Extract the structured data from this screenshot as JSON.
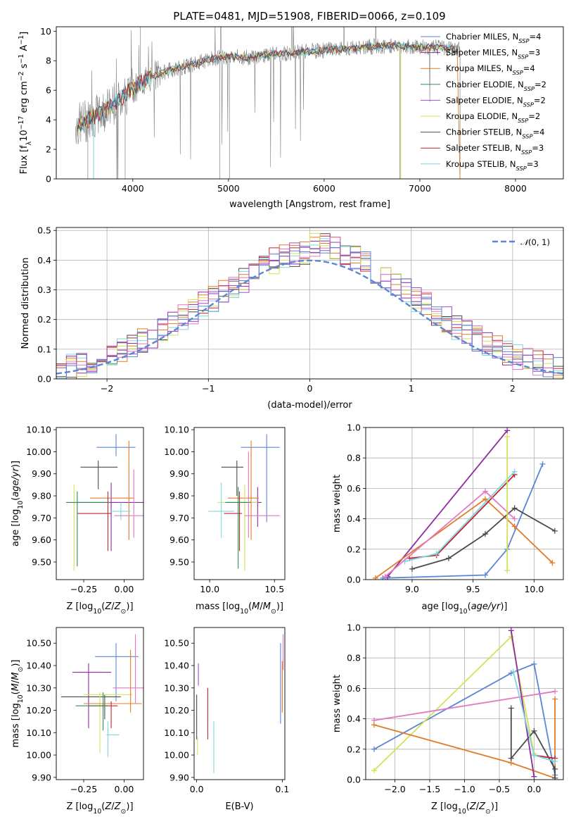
{
  "figure_title": "PLATE=0481, MJD=51908, FIBERID=0066, z=0.109",
  "colors": {
    "Chabrier MILES": "#5b86d6",
    "Salpeter MILES": "#8e2c9e",
    "Kroupa MILES": "#e07b26",
    "Chabrier ELODIE": "#2e8b57",
    "Salpeter ELODIE": "#a04ec8",
    "Kroupa ELODIE": "#d4e157",
    "Chabrier STELIB": "#4a4a4a",
    "Salpeter STELIB": "#c0262d",
    "Kroupa STELIB": "#7fd6e0",
    "pink": "#e377c2",
    "data": "#808080"
  },
  "chart_data": [
    {
      "id": "spectrum",
      "type": "line",
      "title": "PLATE=0481, MJD=51908, FIBERID=0066, z=0.109",
      "xlabel": "wavelength [Angstrom, rest frame]",
      "ylabel": "Flux [f_λ 10^-17 erg cm^-2 s^-1 A^-1]",
      "xlim": [
        3200,
        8500
      ],
      "ylim": [
        0,
        10.3
      ],
      "xticks": [
        4000,
        5000,
        6000,
        7000,
        8000
      ],
      "yticks": [
        0,
        2,
        4,
        6,
        8,
        10
      ],
      "legend_position": "upper right",
      "legend": [
        {
          "label": "Chabrier MILES, N_SSP=4",
          "color": "#5b86d6"
        },
        {
          "label": "Salpeter MILES, N_SSP=3",
          "color": "#8e2c9e"
        },
        {
          "label": "Kroupa MILES, N_SSP=4",
          "color": "#e07b26"
        },
        {
          "label": "Chabrier ELODIE, N_SSP=2",
          "color": "#2e8b57"
        },
        {
          "label": "Salpeter ELODIE, N_SSP=2",
          "color": "#a04ec8"
        },
        {
          "label": "Kroupa ELODIE, N_SSP=2",
          "color": "#d4e157"
        },
        {
          "label": "Chabrier STELIB, N_SSP=4",
          "color": "#4a4a4a"
        },
        {
          "label": "Salpeter STELIB, N_SSP=3",
          "color": "#c0262d"
        },
        {
          "label": "Kroupa STELIB, N_SSP=3",
          "color": "#7fd6e0"
        }
      ],
      "continuum": {
        "x": [
          3400,
          3600,
          3800,
          4000,
          4200,
          4400,
          4600,
          4800,
          5000,
          5200,
          5400,
          5600,
          5800,
          6000,
          6200,
          6400,
          6600,
          6800,
          7000,
          7200,
          7400
        ],
        "y": [
          3.6,
          4.2,
          5.0,
          6.2,
          6.9,
          7.4,
          7.7,
          8.1,
          8.3,
          8.2,
          8.4,
          8.5,
          8.6,
          8.7,
          8.8,
          8.9,
          9.0,
          9.0,
          8.9,
          8.9,
          8.8
        ]
      }
    },
    {
      "id": "residuals",
      "type": "step",
      "xlabel": "(data-model)/error",
      "ylabel": "Normed distribution",
      "xlim": [
        -2.5,
        2.5
      ],
      "ylim": [
        0,
        0.51
      ],
      "xticks": [
        -2,
        -1,
        0,
        1,
        2
      ],
      "yticks": [
        0.0,
        0.1,
        0.2,
        0.3,
        0.4,
        0.5
      ],
      "grid": true,
      "legend": [
        {
          "label": "N(0,1)",
          "color": "#5b86d6",
          "style": "dashed"
        }
      ],
      "bin_width": 0.1
    },
    {
      "id": "Z-age",
      "type": "errorbar",
      "xlabel": "Z [log10(Z/Z⊙)]",
      "ylabel": "age  [log10(age/yr)]",
      "xlim": [
        -0.42,
        0.12
      ],
      "ylim": [
        9.42,
        10.11
      ],
      "xticks": [
        -0.25,
        0.0
      ],
      "xtick_labels": [
        "−0.25",
        "0.00"
      ],
      "yticks": [
        9.5,
        9.6,
        9.7,
        9.8,
        9.9,
        10.0,
        10.1
      ],
      "points": [
        {
          "x": -0.05,
          "xerr": [
            0.12,
            0.12
          ],
          "y": 10.02,
          "yerr": [
            0.04,
            0.06
          ],
          "color": "#5b86d6"
        },
        {
          "x": -0.16,
          "xerr": [
            0.11,
            0.12
          ],
          "y": 9.93,
          "yerr": [
            0.1,
            0.03
          ],
          "color": "#4a4a4a"
        },
        {
          "x": -0.08,
          "xerr": [
            0.21,
            0.2
          ],
          "y": 9.77,
          "yerr": [
            0.22,
            0.09
          ],
          "color": "#8e2c9e"
        },
        {
          "x": 0.03,
          "xerr": [
            0.24,
            0.03
          ],
          "y": 9.79,
          "yerr": [
            0.19,
            0.26
          ],
          "color": "#e07b26"
        },
        {
          "x": -0.31,
          "xerr": [
            0.02,
            0.1
          ],
          "y": 9.77,
          "yerr": [
            0.31,
            0.08
          ],
          "color": "#d4e157"
        },
        {
          "x": -0.1,
          "xerr": [
            0.19,
            0.02
          ],
          "y": 9.72,
          "yerr": [
            0.17,
            0.1
          ],
          "color": "#c0262d"
        },
        {
          "x": -0.29,
          "xerr": [
            0.07,
            0.2
          ],
          "y": 9.77,
          "yerr": [
            0.29,
            0.05
          ],
          "color": "#2e8b57"
        },
        {
          "x": -0.02,
          "xerr": [
            0.06,
            0.06
          ],
          "y": 9.73,
          "yerr": [
            0.04,
            0.04
          ],
          "color": "#7fd6e0"
        },
        {
          "x": 0.06,
          "xerr": [
            0.12,
            0.06
          ],
          "y": 9.71,
          "yerr": [
            0.1,
            0.21
          ],
          "color": "#e377c2"
        }
      ]
    },
    {
      "id": "mass-age",
      "type": "errorbar",
      "xlabel": "mass [log10(M/M⊙)]",
      "ylabel": "",
      "xlim": [
        9.88,
        10.58
      ],
      "ylim": [
        9.42,
        10.11
      ],
      "xticks": [
        10.0,
        10.5
      ],
      "xtick_labels": [
        "10.0",
        "10.5"
      ],
      "yticks": [
        9.5,
        9.6,
        9.7,
        9.8,
        9.9,
        10.0,
        10.1
      ],
      "points": [
        {
          "x": 10.44,
          "xerr": [
            0.2,
            0.1
          ],
          "y": 10.02,
          "yerr": [
            0.34,
            0.06
          ],
          "color": "#5b86d6"
        },
        {
          "x": 10.21,
          "xerr": [
            0.12,
            0.05
          ],
          "y": 9.93,
          "yerr": [
            0.13,
            0.03
          ],
          "color": "#4a4a4a"
        },
        {
          "x": 10.37,
          "xerr": [
            0.24,
            0.03
          ],
          "y": 9.77,
          "yerr": [
            0.11,
            0.07
          ],
          "color": "#8e2c9e"
        },
        {
          "x": 10.32,
          "xerr": [
            0.18,
            0.06
          ],
          "y": 9.79,
          "yerr": [
            0.19,
            0.26
          ],
          "color": "#e07b26"
        },
        {
          "x": 10.27,
          "xerr": [
            0.21,
            0.1
          ],
          "y": 9.77,
          "yerr": [
            0.31,
            0.08
          ],
          "color": "#d4e157"
        },
        {
          "x": 10.23,
          "xerr": [
            0.12,
            0.02
          ],
          "y": 9.72,
          "yerr": [
            0.17,
            0.1
          ],
          "color": "#c0262d"
        },
        {
          "x": 10.22,
          "xerr": [
            0.1,
            0.1
          ],
          "y": 9.77,
          "yerr": [
            0.3,
            0.07
          ],
          "color": "#2e8b57"
        },
        {
          "x": 10.09,
          "xerr": [
            0.1,
            0.1
          ],
          "y": 9.73,
          "yerr": [
            0.12,
            0.13
          ],
          "color": "#7fd6e0"
        },
        {
          "x": 10.3,
          "xerr": [
            0.03,
            0.24
          ],
          "y": 9.71,
          "yerr": [
            0.1,
            0.29
          ],
          "color": "#e377c2"
        }
      ]
    },
    {
      "id": "age-weight",
      "type": "line",
      "xlabel": "age  [log10(age/yr)]",
      "ylabel": "mass weight",
      "xlim": [
        8.62,
        10.24
      ],
      "ylim": [
        0,
        1.0
      ],
      "xticks": [
        9.0,
        9.5,
        10.0
      ],
      "xtick_labels": [
        "9.0",
        "9.5",
        "10.0"
      ],
      "yticks": [
        0.0,
        0.2,
        0.4,
        0.6,
        0.8,
        1.0
      ],
      "grid": true,
      "series": [
        {
          "color": "#5b86d6",
          "x": [
            8.76,
            9.6,
            9.78,
            10.07
          ],
          "y": [
            0.01,
            0.03,
            0.2,
            0.76
          ]
        },
        {
          "color": "#8e2c9e",
          "x": [
            8.8,
            9.78
          ],
          "y": [
            0.02,
            0.98
          ]
        },
        {
          "color": "#e07b26",
          "x": [
            8.7,
            9.6,
            9.84,
            10.15
          ],
          "y": [
            0.01,
            0.53,
            0.35,
            0.11
          ]
        },
        {
          "color": "#4a4a4a",
          "x": [
            9.0,
            9.3,
            9.6,
            9.84,
            10.17
          ],
          "y": [
            0.07,
            0.14,
            0.3,
            0.47,
            0.32
          ]
        },
        {
          "color": "#c0262d",
          "x": [
            8.98,
            9.2,
            9.84
          ],
          "y": [
            0.14,
            0.16,
            0.69
          ]
        },
        {
          "color": "#7fd6e0",
          "x": [
            8.94,
            9.2,
            9.84
          ],
          "y": [
            0.12,
            0.17,
            0.71
          ]
        },
        {
          "color": "#e377c2",
          "x": [
            8.78,
            9.6,
            9.84
          ],
          "y": [
            0.02,
            0.58,
            0.4
          ]
        },
        {
          "color": "#d4e157",
          "x": [
            9.78,
            9.78
          ],
          "y": [
            0.06,
            0.94
          ]
        }
      ]
    },
    {
      "id": "Z-mass",
      "type": "errorbar",
      "xlabel": "Z [log10(Z/Z⊙)]",
      "ylabel": "mass [log10(M/M⊙)]",
      "xlim": [
        -0.42,
        0.12
      ],
      "ylim": [
        9.89,
        10.57
      ],
      "xticks": [
        -0.25,
        0.0
      ],
      "xtick_labels": [
        "−0.25",
        "0.00"
      ],
      "yticks": [
        9.9,
        10.0,
        10.1,
        10.2,
        10.3,
        10.4,
        10.5
      ],
      "points": [
        {
          "x": -0.05,
          "xerr": [
            0.13,
            0.14
          ],
          "y": 10.44,
          "yerr": [
            0.2,
            0.06
          ],
          "color": "#5b86d6"
        },
        {
          "x": -0.22,
          "xerr": [
            0.1,
            0.14
          ],
          "y": 10.37,
          "yerr": [
            0.25,
            0.04
          ],
          "color": "#8e2c9e"
        },
        {
          "x": -0.12,
          "xerr": [
            0.27,
            0.1
          ],
          "y": 10.26,
          "yerr": [
            0.1,
            0.01
          ],
          "color": "#4a4a4a"
        },
        {
          "x": -0.15,
          "xerr": [
            0.1,
            0.2
          ],
          "y": 10.27,
          "yerr": [
            0.26,
            0.01
          ],
          "color": "#d4e157"
        },
        {
          "x": 0.04,
          "xerr": [
            0.29,
            0.07
          ],
          "y": 10.23,
          "yerr": [
            0.04,
            0.24
          ],
          "color": "#e07b26"
        },
        {
          "x": -0.08,
          "xerr": [
            0.14,
            0.04
          ],
          "y": 10.22,
          "yerr": [
            0.1,
            0.02
          ],
          "color": "#c0262d"
        },
        {
          "x": -0.13,
          "xerr": [
            0.17,
            0.03
          ],
          "y": 10.22,
          "yerr": [
            0.11,
            0.06
          ],
          "color": "#2e8b57"
        },
        {
          "x": -0.1,
          "xerr": [
            0.01,
            0.07
          ],
          "y": 10.09,
          "yerr": [
            0.1,
            0.06
          ],
          "color": "#7fd6e0"
        },
        {
          "x": 0.07,
          "xerr": [
            0.14,
            0.07
          ],
          "y": 10.3,
          "yerr": [
            0.07,
            0.24
          ],
          "color": "#e377c2"
        }
      ]
    },
    {
      "id": "EBV-mass",
      "type": "errorbar",
      "xlabel": "E(B-V)",
      "ylabel": "",
      "xlim": [
        -0.003,
        0.103
      ],
      "ylim": [
        9.89,
        10.57
      ],
      "xticks": [
        0.0,
        0.1
      ],
      "xtick_labels": [
        "0.0",
        "0.1"
      ],
      "yticks": [
        9.9,
        10.0,
        10.1,
        10.2,
        10.3,
        10.4,
        10.5
      ],
      "points": [
        {
          "x": 0.002,
          "y": 10.38,
          "yerr": [
            0.07,
            0.03
          ],
          "color": "#a04ec8"
        },
        {
          "x": 0.0,
          "y": 10.21,
          "yerr": [
            0.14,
            0.06
          ],
          "color": "#4a4a4a"
        },
        {
          "x": 0.001,
          "y": 10.03,
          "yerr": [
            0.03,
            0.05
          ],
          "color": "#d4e157"
        },
        {
          "x": 0.013,
          "y": 10.21,
          "yerr": [
            0.14,
            0.09
          ],
          "color": "#c0262d"
        },
        {
          "x": 0.02,
          "y": 10.02,
          "yerr": [
            0.1,
            0.13
          ],
          "color": "#7fd6e0"
        },
        {
          "x": 0.098,
          "y": 10.34,
          "yerr": [
            0.2,
            0.16
          ],
          "color": "#5b86d6"
        },
        {
          "x": 0.1,
          "y": 10.3,
          "yerr": [
            0.11,
            0.12
          ],
          "color": "#e07b26"
        },
        {
          "x": 0.101,
          "y": 10.44,
          "yerr": [
            0.06,
            0.1
          ],
          "color": "#e377c2"
        }
      ]
    },
    {
      "id": "Z-weight",
      "type": "line",
      "xlabel": "Z [log10(Z/Z⊙)]",
      "ylabel": "mass weight",
      "xlim": [
        -2.42,
        0.42
      ],
      "ylim": [
        0,
        1.0
      ],
      "xticks": [
        -2.0,
        -1.5,
        -1.0,
        -0.5,
        0.0
      ],
      "xtick_labels": [
        "−2.0",
        "−1.5",
        "−1.0",
        "−0.5",
        "0.0"
      ],
      "yticks": [
        0.0,
        0.2,
        0.4,
        0.6,
        0.8,
        1.0
      ],
      "grid": true,
      "series": [
        {
          "color": "#5b86d6",
          "x": [
            -2.3,
            -0.33,
            0.0,
            0.3
          ],
          "y": [
            0.2,
            0.7,
            0.76,
            0.03
          ]
        },
        {
          "color": "#d4e157",
          "x": [
            -2.3,
            -0.33,
            0.0
          ],
          "y": [
            0.06,
            0.94,
            0.17
          ]
        },
        {
          "color": "#e377c2",
          "x": [
            -2.3,
            0.3
          ],
          "y": [
            0.39,
            0.58
          ]
        },
        {
          "color": "#e07b26",
          "x": [
            -2.3,
            -0.33,
            0.3,
            0.3
          ],
          "y": [
            0.36,
            0.11,
            0.01,
            0.53
          ]
        },
        {
          "color": "#8e2c9e",
          "x": [
            -0.33,
            0.0
          ],
          "y": [
            0.98,
            0.02
          ]
        },
        {
          "color": "#4a4a4a",
          "x": [
            -0.33,
            -0.33,
            0.0,
            0.3,
            0.3
          ],
          "y": [
            0.47,
            0.14,
            0.32,
            0.07,
            0.01
          ]
        },
        {
          "color": "#c0262d",
          "x": [
            0.0,
            0.3
          ],
          "y": [
            0.16,
            0.14
          ]
        },
        {
          "color": "#7fd6e0",
          "x": [
            -0.3,
            0.0,
            0.3
          ],
          "y": [
            0.71,
            0.16,
            0.12
          ]
        }
      ]
    }
  ]
}
